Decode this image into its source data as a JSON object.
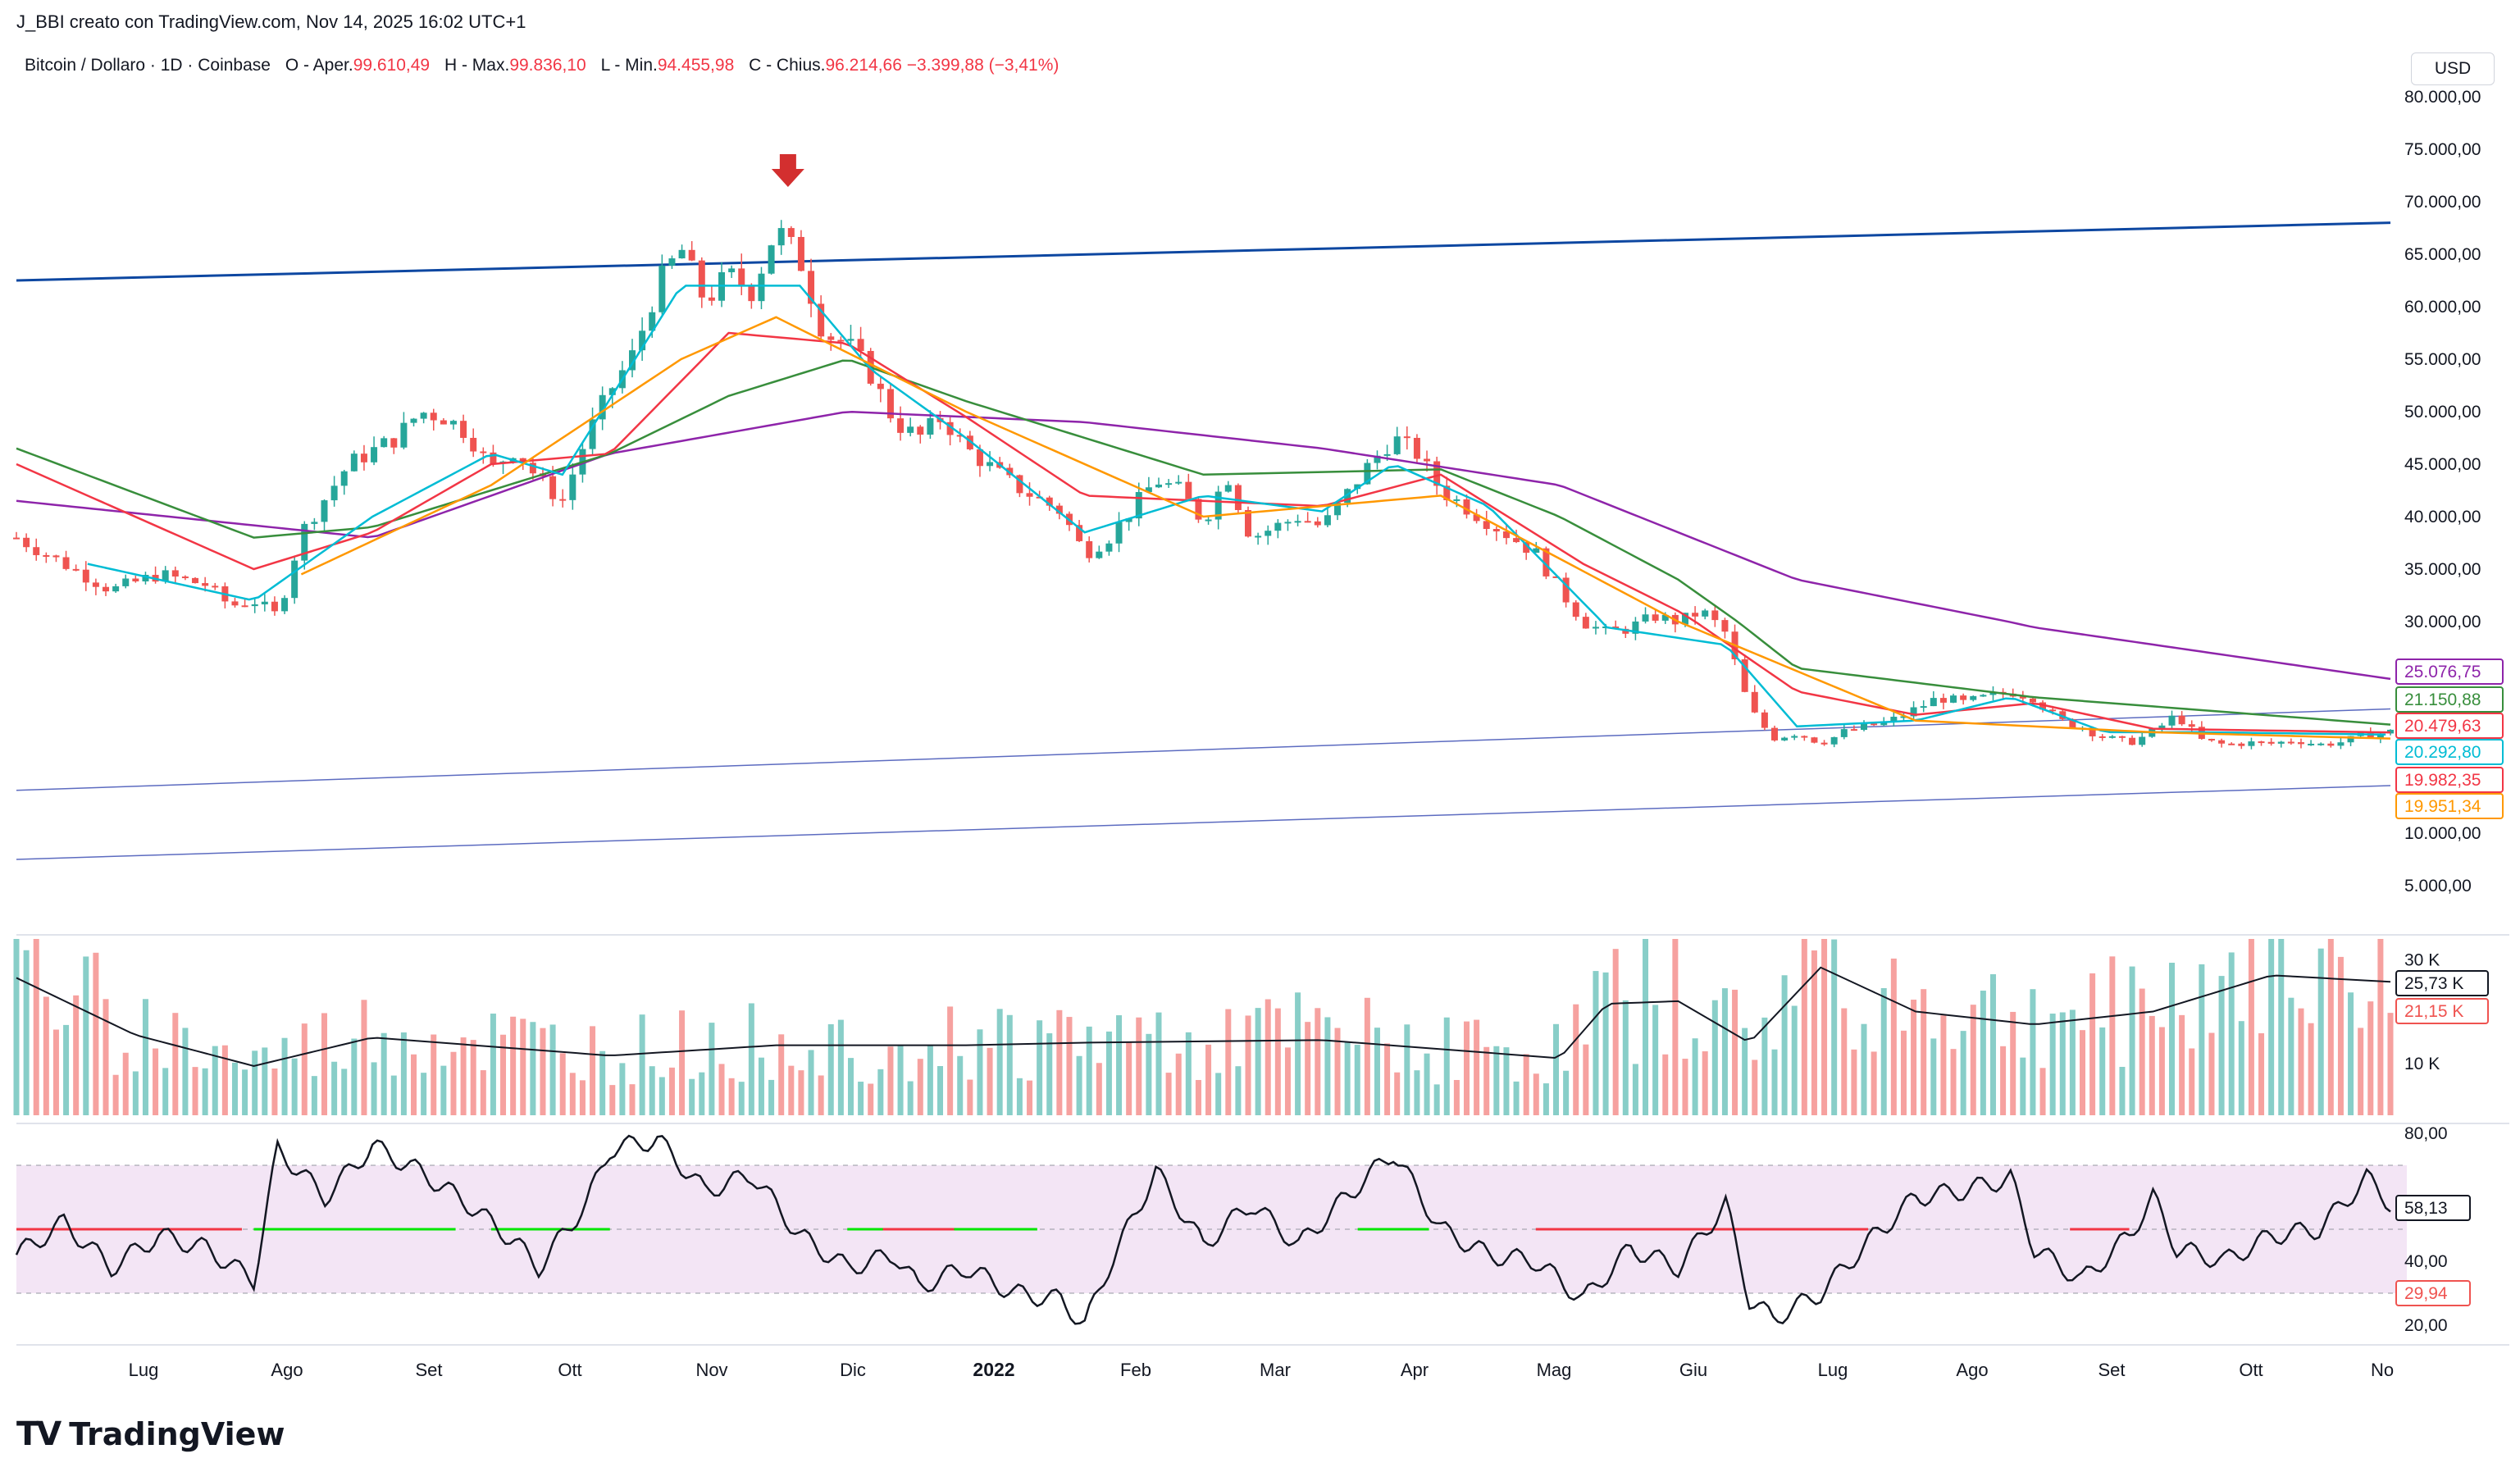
{
  "header": {
    "creator": "J_BBI creato con TradingView.com, Nov 14, 2025 16:02 UTC+1",
    "symbol": "Bitcoin / Dollaro · 1D · Coinbase",
    "open_label": "O - Aper.",
    "open_value": "99.610,49",
    "high_label": "H - Max.",
    "high_value": "99.836,10",
    "low_label": "L - Min.",
    "low_value": "94.455,98",
    "close_label": "C - Chius.",
    "close_value": "96.214,66",
    "change": "−3.399,88 (−3,41%)",
    "currency": "USD"
  },
  "brand": {
    "mark": "TV",
    "name": "TradingView"
  },
  "colors": {
    "up": "#26a69a",
    "down": "#ef5350",
    "ma_purple": "#8e24aa",
    "ma_green": "#388e3c",
    "ma_red": "#f23645",
    "ma_cyan": "#00bcd4",
    "ma_orange": "#ff9800",
    "trend_main": "#0d47a1",
    "trend_thin": "#5c6bc0",
    "rsi_band": "#f3e5f5",
    "arrow": "#d32f2f"
  },
  "chart_data": [
    {
      "type": "candlestick",
      "title": "Bitcoin / Dollaro · 1D · Coinbase",
      "x_range": [
        "2021-06-15",
        "2022-11-01"
      ],
      "months": [
        "Lug",
        "Ago",
        "Set",
        "Ott",
        "Nov",
        "Dic",
        "2022",
        "Feb",
        "Mar",
        "Apr",
        "Mag",
        "Giu",
        "Lug",
        "Ago",
        "Set",
        "Ott",
        "No"
      ],
      "price_ticks": [
        "80.000,00",
        "75.000,00",
        "70.000,00",
        "65.000,00",
        "60.000,00",
        "55.000,00",
        "50.000,00",
        "45.000,00",
        "40.000,00",
        "35.000,00",
        "30.000,00",
        "10.000,00",
        "5.000,00"
      ],
      "price_tick_values": [
        80000,
        75000,
        70000,
        65000,
        60000,
        55000,
        50000,
        45000,
        40000,
        35000,
        30000,
        10000,
        5000
      ],
      "price_points": [
        {
          "t": 0.0,
          "p": 38000
        },
        {
          "t": 0.02,
          "p": 35500
        },
        {
          "t": 0.04,
          "p": 33000
        },
        {
          "t": 0.06,
          "p": 34500
        },
        {
          "t": 0.08,
          "p": 33500
        },
        {
          "t": 0.09,
          "p": 31500
        },
        {
          "t": 0.1,
          "p": 32000
        },
        {
          "t": 0.11,
          "p": 30500
        },
        {
          "t": 0.12,
          "p": 38500
        },
        {
          "t": 0.14,
          "p": 45000
        },
        {
          "t": 0.16,
          "p": 47500
        },
        {
          "t": 0.17,
          "p": 50000
        },
        {
          "t": 0.18,
          "p": 49500
        },
        {
          "t": 0.19,
          "p": 48000
        },
        {
          "t": 0.2,
          "p": 44500
        },
        {
          "t": 0.21,
          "p": 46500
        },
        {
          "t": 0.22,
          "p": 43500
        },
        {
          "t": 0.23,
          "p": 41500
        },
        {
          "t": 0.24,
          "p": 47500
        },
        {
          "t": 0.25,
          "p": 52000
        },
        {
          "t": 0.26,
          "p": 55500
        },
        {
          "t": 0.27,
          "p": 62000
        },
        {
          "t": 0.28,
          "p": 65500
        },
        {
          "t": 0.29,
          "p": 60500
        },
        {
          "t": 0.3,
          "p": 63000
        },
        {
          "t": 0.31,
          "p": 61500
        },
        {
          "t": 0.32,
          "p": 67500
        },
        {
          "t": 0.33,
          "p": 64500
        },
        {
          "t": 0.34,
          "p": 57500
        },
        {
          "t": 0.35,
          "p": 56500
        },
        {
          "t": 0.36,
          "p": 53500
        },
        {
          "t": 0.37,
          "p": 49000
        },
        {
          "t": 0.38,
          "p": 47500
        },
        {
          "t": 0.39,
          "p": 49500
        },
        {
          "t": 0.4,
          "p": 46500
        },
        {
          "t": 0.42,
          "p": 43000
        },
        {
          "t": 0.44,
          "p": 40500
        },
        {
          "t": 0.45,
          "p": 36500
        },
        {
          "t": 0.46,
          "p": 38000
        },
        {
          "t": 0.48,
          "p": 43500
        },
        {
          "t": 0.49,
          "p": 42500
        },
        {
          "t": 0.5,
          "p": 39500
        },
        {
          "t": 0.51,
          "p": 44000
        },
        {
          "t": 0.52,
          "p": 38000
        },
        {
          "t": 0.54,
          "p": 40000
        },
        {
          "t": 0.55,
          "p": 39000
        },
        {
          "t": 0.56,
          "p": 42000
        },
        {
          "t": 0.57,
          "p": 45000
        },
        {
          "t": 0.58,
          "p": 47500
        },
        {
          "t": 0.59,
          "p": 46000
        },
        {
          "t": 0.6,
          "p": 42500
        },
        {
          "t": 0.62,
          "p": 39500
        },
        {
          "t": 0.63,
          "p": 38000
        },
        {
          "t": 0.64,
          "p": 36500
        },
        {
          "t": 0.65,
          "p": 33000
        },
        {
          "t": 0.66,
          "p": 30000
        },
        {
          "t": 0.67,
          "p": 29000
        },
        {
          "t": 0.68,
          "p": 29500
        },
        {
          "t": 0.69,
          "p": 30500
        },
        {
          "t": 0.7,
          "p": 30000
        },
        {
          "t": 0.71,
          "p": 31000
        },
        {
          "t": 0.72,
          "p": 29000
        },
        {
          "t": 0.73,
          "p": 22500
        },
        {
          "t": 0.74,
          "p": 20000
        },
        {
          "t": 0.75,
          "p": 20500
        },
        {
          "t": 0.76,
          "p": 19500
        },
        {
          "t": 0.77,
          "p": 20500
        },
        {
          "t": 0.78,
          "p": 21000
        },
        {
          "t": 0.79,
          "p": 21500
        },
        {
          "t": 0.8,
          "p": 22500
        },
        {
          "t": 0.81,
          "p": 23500
        },
        {
          "t": 0.82,
          "p": 23000
        },
        {
          "t": 0.83,
          "p": 23500
        },
        {
          "t": 0.84,
          "p": 24000
        },
        {
          "t": 0.85,
          "p": 23500
        },
        {
          "t": 0.86,
          "p": 21500
        },
        {
          "t": 0.87,
          "p": 21000
        },
        {
          "t": 0.88,
          "p": 20000
        },
        {
          "t": 0.89,
          "p": 19500
        },
        {
          "t": 0.9,
          "p": 20500
        },
        {
          "t": 0.91,
          "p": 22000
        },
        {
          "t": 0.92,
          "p": 19800
        },
        {
          "t": 0.93,
          "p": 19300
        },
        {
          "t": 0.94,
          "p": 19500
        },
        {
          "t": 0.95,
          "p": 19400
        },
        {
          "t": 0.96,
          "p": 19800
        },
        {
          "t": 0.97,
          "p": 19300
        },
        {
          "t": 0.98,
          "p": 19600
        },
        {
          "t": 0.99,
          "p": 20300
        },
        {
          "t": 1.0,
          "p": 20500
        }
      ],
      "moving_averages": [
        {
          "name": "MA purple",
          "color": "#8e24aa",
          "last": "25.076,75",
          "points": [
            [
              0,
              41500
            ],
            [
              0.15,
              38000
            ],
            [
              0.25,
              46000
            ],
            [
              0.35,
              50000
            ],
            [
              0.45,
              49000
            ],
            [
              0.55,
              46500
            ],
            [
              0.65,
              43000
            ],
            [
              0.75,
              34000
            ],
            [
              0.85,
              29500
            ],
            [
              1.0,
              25076
            ]
          ]
        },
        {
          "name": "MA green",
          "color": "#388e3c",
          "last": "21.150,88",
          "points": [
            [
              0,
              46500
            ],
            [
              0.1,
              38000
            ],
            [
              0.15,
              39000
            ],
            [
              0.25,
              46000
            ],
            [
              0.3,
              51500
            ],
            [
              0.35,
              55000
            ],
            [
              0.4,
              51000
            ],
            [
              0.5,
              44000
            ],
            [
              0.6,
              44500
            ],
            [
              0.65,
              40000
            ],
            [
              0.7,
              34000
            ],
            [
              0.75,
              26000
            ],
            [
              0.85,
              23500
            ],
            [
              1.0,
              21150
            ]
          ]
        },
        {
          "name": "MA red",
          "color": "#f23645",
          "last": "20.479,63",
          "points": [
            [
              0,
              45000
            ],
            [
              0.1,
              35000
            ],
            [
              0.15,
              38500
            ],
            [
              0.2,
              45000
            ],
            [
              0.25,
              46000
            ],
            [
              0.3,
              57500
            ],
            [
              0.35,
              56500
            ],
            [
              0.4,
              49500
            ],
            [
              0.45,
              42000
            ],
            [
              0.55,
              41000
            ],
            [
              0.6,
              44000
            ],
            [
              0.66,
              35500
            ],
            [
              0.7,
              31000
            ],
            [
              0.75,
              24000
            ],
            [
              0.8,
              22000
            ],
            [
              0.85,
              23000
            ],
            [
              0.9,
              20800
            ],
            [
              1.0,
              20480
            ]
          ]
        },
        {
          "name": "MA cyan",
          "color": "#00bcd4",
          "last": "20.292,80",
          "points": [
            [
              0.03,
              35500
            ],
            [
              0.1,
              32000
            ],
            [
              0.15,
              40000
            ],
            [
              0.2,
              46000
            ],
            [
              0.23,
              44000
            ],
            [
              0.28,
              62000
            ],
            [
              0.33,
              62000
            ],
            [
              0.36,
              54000
            ],
            [
              0.4,
              47500
            ],
            [
              0.45,
              38500
            ],
            [
              0.5,
              42000
            ],
            [
              0.55,
              40500
            ],
            [
              0.58,
              45000
            ],
            [
              0.62,
              41000
            ],
            [
              0.67,
              29500
            ],
            [
              0.72,
              28000
            ],
            [
              0.75,
              21000
            ],
            [
              0.8,
              21500
            ],
            [
              0.84,
              23500
            ],
            [
              0.88,
              20500
            ],
            [
              0.92,
              20500
            ],
            [
              1.0,
              20293
            ]
          ]
        },
        {
          "name": "MA orange",
          "color": "#ff9800",
          "last": "19.951,34",
          "points": [
            [
              0.12,
              34500
            ],
            [
              0.2,
              43000
            ],
            [
              0.28,
              55000
            ],
            [
              0.32,
              59000
            ],
            [
              0.4,
              50000
            ],
            [
              0.5,
              40000
            ],
            [
              0.6,
              42000
            ],
            [
              0.7,
              30000
            ],
            [
              0.8,
              21500
            ],
            [
              0.9,
              20500
            ],
            [
              1.0,
              19951
            ]
          ]
        }
      ],
      "extra_badge": "19.982,35",
      "trendlines": [
        {
          "name": "upper channel",
          "from": [
            0,
            62500
          ],
          "to": [
            1.0,
            68000
          ],
          "weight": "thick"
        },
        {
          "name": "middle channel",
          "from": [
            0,
            14500
          ],
          "to": [
            1.0,
            22500
          ],
          "weight": "thin"
        },
        {
          "name": "lower channel",
          "from": [
            0,
            7500
          ],
          "to": [
            1.0,
            15000
          ],
          "weight": "thin"
        }
      ],
      "annotation": {
        "type": "arrow-down",
        "t": 0.325
      }
    },
    {
      "type": "bar",
      "title": "Volume",
      "ticks": [
        "30 K",
        "10 K"
      ],
      "tick_values": [
        30000,
        10000
      ],
      "last_values": [
        "25,73 K",
        "21,15 K"
      ],
      "ma_line": [
        [
          0,
          26500
        ],
        [
          0.05,
          15500
        ],
        [
          0.1,
          9500
        ],
        [
          0.15,
          15000
        ],
        [
          0.25,
          11500
        ],
        [
          0.32,
          13500
        ],
        [
          0.4,
          13500
        ],
        [
          0.45,
          14000
        ],
        [
          0.55,
          14500
        ],
        [
          0.65,
          11000
        ],
        [
          0.67,
          21500
        ],
        [
          0.7,
          22000
        ],
        [
          0.73,
          14000
        ],
        [
          0.76,
          28500
        ],
        [
          0.8,
          20000
        ],
        [
          0.85,
          17500
        ],
        [
          0.9,
          20000
        ],
        [
          0.95,
          27000
        ],
        [
          1.0,
          25730
        ]
      ]
    },
    {
      "type": "line",
      "title": "RSI",
      "ticks": [
        "80,00",
        "40,00",
        "20,00"
      ],
      "tick_values": [
        80,
        40,
        20
      ],
      "band": [
        30,
        70
      ],
      "last_values": [
        "58,13",
        "29,94"
      ],
      "points": [
        [
          0,
          42
        ],
        [
          0.02,
          52
        ],
        [
          0.04,
          38
        ],
        [
          0.06,
          48
        ],
        [
          0.08,
          44
        ],
        [
          0.1,
          34
        ],
        [
          0.11,
          75
        ],
        [
          0.13,
          60
        ],
        [
          0.15,
          76
        ],
        [
          0.17,
          68
        ],
        [
          0.19,
          58
        ],
        [
          0.21,
          46
        ],
        [
          0.22,
          38
        ],
        [
          0.24,
          58
        ],
        [
          0.25,
          75
        ],
        [
          0.27,
          78
        ],
        [
          0.29,
          62
        ],
        [
          0.31,
          67
        ],
        [
          0.33,
          48
        ],
        [
          0.35,
          38
        ],
        [
          0.37,
          42
        ],
        [
          0.38,
          32
        ],
        [
          0.4,
          38
        ],
        [
          0.42,
          30
        ],
        [
          0.44,
          28
        ],
        [
          0.45,
          20
        ],
        [
          0.46,
          38
        ],
        [
          0.48,
          68
        ],
        [
          0.5,
          45
        ],
        [
          0.52,
          58
        ],
        [
          0.54,
          45
        ],
        [
          0.56,
          60
        ],
        [
          0.58,
          74
        ],
        [
          0.6,
          50
        ],
        [
          0.62,
          42
        ],
        [
          0.64,
          40
        ],
        [
          0.66,
          28
        ],
        [
          0.68,
          44
        ],
        [
          0.7,
          38
        ],
        [
          0.72,
          58
        ],
        [
          0.73,
          28
        ],
        [
          0.74,
          22
        ],
        [
          0.76,
          30
        ],
        [
          0.78,
          46
        ],
        [
          0.8,
          60
        ],
        [
          0.82,
          62
        ],
        [
          0.84,
          66
        ],
        [
          0.85,
          44
        ],
        [
          0.87,
          34
        ],
        [
          0.89,
          48
        ],
        [
          0.9,
          60
        ],
        [
          0.91,
          44
        ],
        [
          0.93,
          40
        ],
        [
          0.95,
          48
        ],
        [
          0.97,
          50
        ],
        [
          0.99,
          66
        ],
        [
          1.0,
          58
        ]
      ]
    }
  ]
}
